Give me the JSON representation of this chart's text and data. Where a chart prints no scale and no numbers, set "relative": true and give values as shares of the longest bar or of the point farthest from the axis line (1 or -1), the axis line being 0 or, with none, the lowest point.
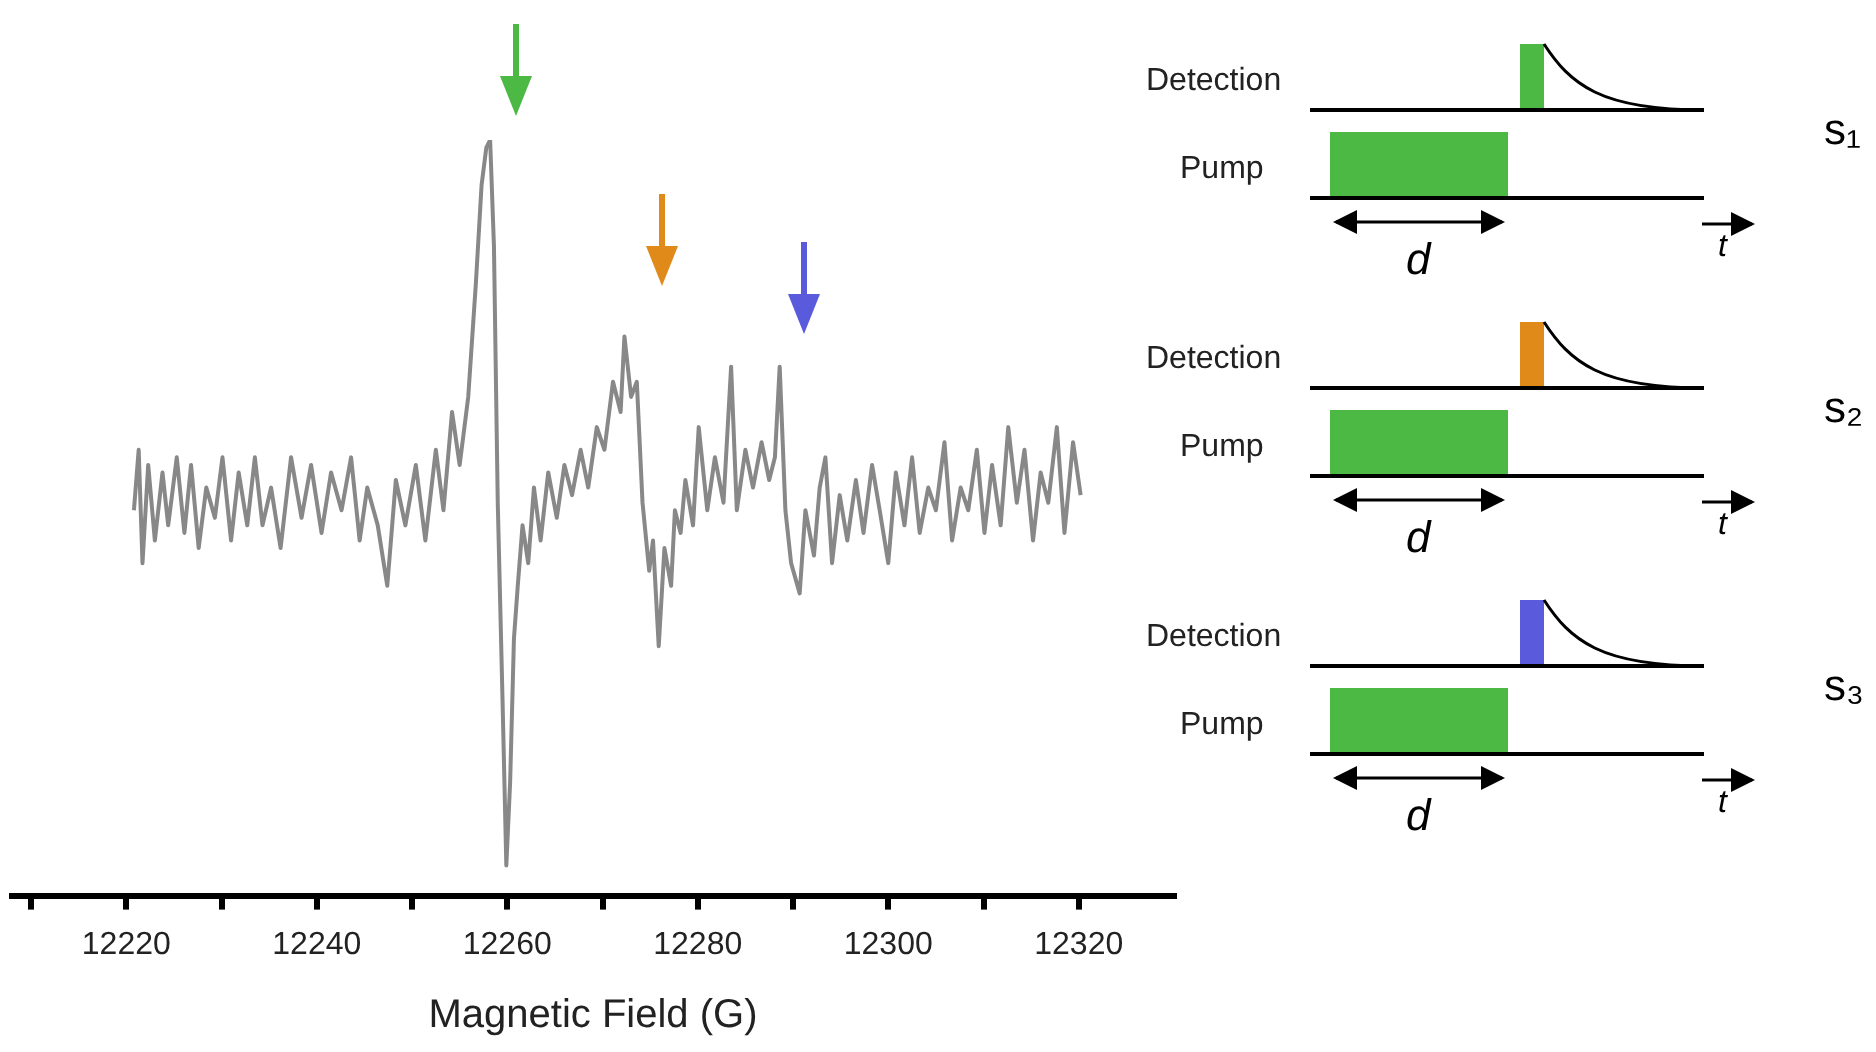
{
  "chart_data": {
    "type": "line",
    "relative": true,
    "xlabel": "Magnetic Field (G)",
    "xlim": [
      12208,
      12330
    ],
    "xticks": [
      {
        "value": 12210,
        "label": null
      },
      12220,
      {
        "value": 12230,
        "label": null
      },
      12240,
      {
        "value": 12250,
        "label": null
      },
      12260,
      {
        "value": 12270,
        "label": null
      },
      12280,
      {
        "value": 12290,
        "label": null
      },
      12300,
      {
        "value": 12310,
        "label": null
      },
      12320
    ],
    "x": [
      12220.8,
      12221.3,
      12221.7,
      12222.3,
      12223.0,
      12223.8,
      12224.4,
      12225.3,
      12226.1,
      12226.8,
      12227.6,
      12228.4,
      12229.3,
      12230.1,
      12231.0,
      12231.8,
      12232.7,
      12233.5,
      12234.3,
      12235.2,
      12236.2,
      12237.3,
      12238.4,
      12239.4,
      12240.5,
      12241.5,
      12242.6,
      12243.6,
      12244.5,
      12245.3,
      12246.4,
      12247.4,
      12248.3,
      12249.3,
      12250.4,
      12251.4,
      12252.5,
      12253.3,
      12254.2,
      12255.0,
      12255.9,
      12256.7,
      12257.3,
      12257.8,
      12258.2,
      12258.6,
      12259.0,
      12259.5,
      12259.9,
      12260.3,
      12260.7,
      12261.1,
      12261.6,
      12262.2,
      12262.8,
      12263.5,
      12264.3,
      12265.2,
      12266.0,
      12266.8,
      12267.7,
      12268.5,
      12269.4,
      12270.2,
      12271.1,
      12271.9,
      12272.3,
      12273.0,
      12273.6,
      12274.2,
      12274.9,
      12275.3,
      12275.9,
      12276.5,
      12277.2,
      12277.6,
      12278.2,
      12278.7,
      12279.5,
      12280.1,
      12281.0,
      12281.8,
      12282.7,
      12283.5,
      12284.1,
      12285.0,
      12285.8,
      12286.7,
      12287.5,
      12288.1,
      12288.6,
      12289.2,
      12289.8,
      12290.7,
      12291.3,
      12292.2,
      12292.8,
      12293.4,
      12294.1,
      12294.9,
      12295.7,
      12296.6,
      12297.4,
      12298.3,
      12299.1,
      12300.0,
      12300.8,
      12301.7,
      12302.5,
      12303.3,
      12304.2,
      12305.0,
      12305.9,
      12306.7,
      12307.6,
      12308.4,
      12309.3,
      12310.1,
      12310.9,
      12311.8,
      12312.6,
      12313.5,
      12314.3,
      12315.2,
      12316.0,
      12316.8,
      12317.7,
      12318.5,
      12319.4,
      12320.2
    ],
    "series": [
      {
        "color": "#888888",
        "values": [
          0.51,
          0.59,
          0.44,
          0.57,
          0.47,
          0.56,
          0.49,
          0.58,
          0.48,
          0.57,
          0.46,
          0.54,
          0.5,
          0.58,
          0.47,
          0.56,
          0.49,
          0.58,
          0.49,
          0.54,
          0.46,
          0.58,
          0.5,
          0.57,
          0.48,
          0.56,
          0.51,
          0.58,
          0.47,
          0.54,
          0.49,
          0.41,
          0.55,
          0.49,
          0.57,
          0.47,
          0.59,
          0.51,
          0.64,
          0.57,
          0.66,
          0.81,
          0.94,
          0.99,
          1,
          0.86,
          0.52,
          0.26,
          0.04,
          0.15,
          0.34,
          0.41,
          0.49,
          0.44,
          0.54,
          0.47,
          0.56,
          0.5,
          0.57,
          0.53,
          0.59,
          0.54,
          0.62,
          0.59,
          0.68,
          0.64,
          0.74,
          0.66,
          0.68,
          0.52,
          0.43,
          0.47,
          0.33,
          0.46,
          0.41,
          0.51,
          0.48,
          0.55,
          0.49,
          0.62,
          0.51,
          0.58,
          0.52,
          0.7,
          0.51,
          0.59,
          0.54,
          0.6,
          0.55,
          0.58,
          0.7,
          0.51,
          0.44,
          0.4,
          0.51,
          0.45,
          0.54,
          0.58,
          0.44,
          0.53,
          0.47,
          0.55,
          0.48,
          0.57,
          0.51,
          0.44,
          0.56,
          0.49,
          0.58,
          0.48,
          0.54,
          0.51,
          0.6,
          0.47,
          0.54,
          0.51,
          0.59,
          0.48,
          0.57,
          0.49,
          0.62,
          0.52,
          0.59,
          0.47,
          0.56,
          0.52,
          0.62,
          0.48,
          0.6,
          0.53
        ]
      }
    ],
    "marker": "none",
    "line_style": "solid",
    "legend": false,
    "annotations": [
      "Detection",
      "Pump",
      "d",
      "t",
      "s₁",
      "Detection",
      "Pump",
      "d",
      "t",
      "s₂",
      "Detection",
      "Pump",
      "d",
      "t",
      "s₃"
    ]
  }
}
